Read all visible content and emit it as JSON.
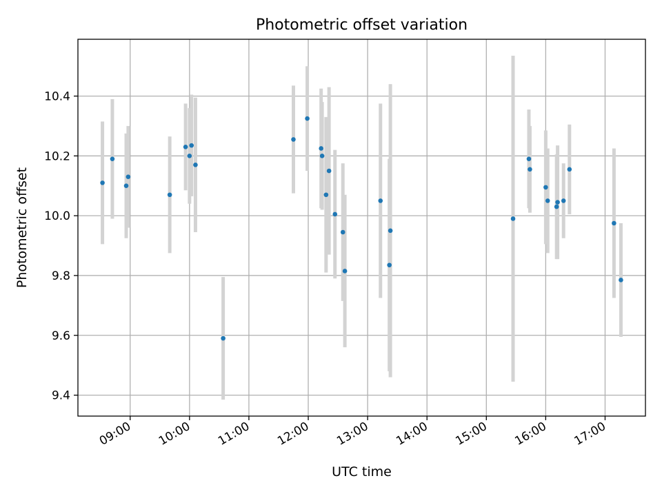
{
  "chart_data": {
    "type": "scatter",
    "title": "Photometric offset variation",
    "xlabel": "UTC time",
    "ylabel": "Photometric offset",
    "x_tick_labels": [
      "09:00",
      "10:00",
      "11:00",
      "12:00",
      "13:00",
      "14:00",
      "15:00",
      "16:00",
      "17:00"
    ],
    "x_ticks_hours": [
      9,
      10,
      11,
      12,
      13,
      14,
      15,
      16,
      17
    ],
    "xlim_hours": [
      8.12,
      17.68
    ],
    "y_tick_labels": [
      "9.4",
      "9.6",
      "9.8",
      "10.0",
      "10.2",
      "10.4"
    ],
    "y_ticks": [
      9.4,
      9.6,
      9.8,
      10.0,
      10.2,
      10.4
    ],
    "ylim": [
      9.33,
      10.59
    ],
    "grid": true,
    "point_color": "#1f77b4",
    "errorbar_color": "#d3d3d3",
    "points": [
      {
        "x": "08:32",
        "y": 10.11,
        "err": 0.205
      },
      {
        "x": "08:42",
        "y": 10.19,
        "err": 0.2
      },
      {
        "x": "08:56",
        "y": 10.1,
        "err": 0.175
      },
      {
        "x": "08:58",
        "y": 10.13,
        "err": 0.17
      },
      {
        "x": "09:40",
        "y": 10.07,
        "err": 0.195
      },
      {
        "x": "09:56",
        "y": 10.23,
        "err": 0.145
      },
      {
        "x": "10:00",
        "y": 10.2,
        "err": 0.16
      },
      {
        "x": "10:02",
        "y": 10.235,
        "err": 0.17
      },
      {
        "x": "10:06",
        "y": 10.17,
        "err": 0.225
      },
      {
        "x": "10:34",
        "y": 9.59,
        "err": 0.205
      },
      {
        "x": "11:45",
        "y": 10.255,
        "err": 0.18
      },
      {
        "x": "11:59",
        "y": 10.325,
        "err": 0.175
      },
      {
        "x": "12:13",
        "y": 10.225,
        "err": 0.2
      },
      {
        "x": "12:14",
        "y": 10.2,
        "err": 0.18
      },
      {
        "x": "12:18",
        "y": 10.07,
        "err": 0.26
      },
      {
        "x": "12:21",
        "y": 10.15,
        "err": 0.28
      },
      {
        "x": "12:27",
        "y": 10.005,
        "err": 0.215
      },
      {
        "x": "12:35",
        "y": 9.945,
        "err": 0.23
      },
      {
        "x": "12:37",
        "y": 9.815,
        "err": 0.255
      },
      {
        "x": "13:13",
        "y": 10.05,
        "err": 0.325
      },
      {
        "x": "13:22",
        "y": 9.835,
        "err": 0.355
      },
      {
        "x": "13:23",
        "y": 9.95,
        "err": 0.49
      },
      {
        "x": "15:27",
        "y": 9.99,
        "err": 0.545
      },
      {
        "x": "15:43",
        "y": 10.19,
        "err": 0.165
      },
      {
        "x": "15:44",
        "y": 10.155,
        "err": 0.145
      },
      {
        "x": "16:00",
        "y": 10.095,
        "err": 0.19
      },
      {
        "x": "16:02",
        "y": 10.05,
        "err": 0.175
      },
      {
        "x": "16:11",
        "y": 10.03,
        "err": 0.175
      },
      {
        "x": "16:12",
        "y": 10.045,
        "err": 0.19
      },
      {
        "x": "16:18",
        "y": 10.05,
        "err": 0.125
      },
      {
        "x": "16:24",
        "y": 10.155,
        "err": 0.15
      },
      {
        "x": "17:09",
        "y": 9.975,
        "err": 0.25
      },
      {
        "x": "17:16",
        "y": 9.785,
        "err": 0.19
      }
    ]
  }
}
